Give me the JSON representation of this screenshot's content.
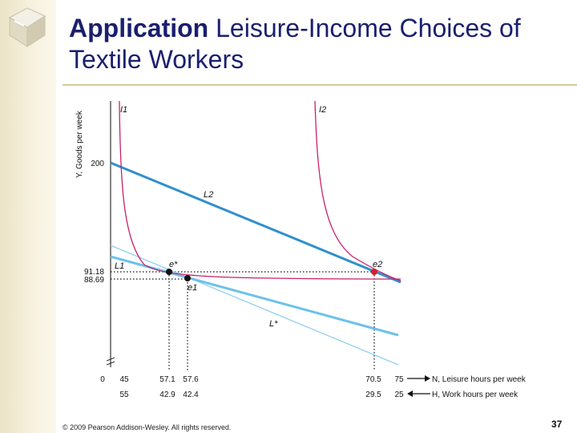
{
  "slide": {
    "title_bold": "Application",
    "title_rest": " Leisure-Income Choices of Textile Workers",
    "footer": "© 2009 Pearson Addison-Wesley. All rights reserved.",
    "page_number": "37",
    "accent_color": "#1a1f6e",
    "rule_color": "#d6cc9a"
  },
  "chart_data": {
    "type": "line",
    "ylabel": "Y, Goods per week",
    "xlabel_top": "N, Leisure hours per week",
    "xlabel_bottom": "H, Work hours per week",
    "y_ticks": [
      "200",
      "91.18",
      "88.69"
    ],
    "x_ticks_leisure": [
      "0",
      "45",
      "57.1",
      "57.6",
      "70.5",
      "75"
    ],
    "x_ticks_work": [
      "55",
      "42.9",
      "42.4",
      "29.5",
      "25"
    ],
    "series": [
      {
        "name": "L2",
        "color": "#2f8fce",
        "values": [
          [
            45,
            200
          ],
          [
            75,
            88.69
          ]
        ]
      },
      {
        "name": "L1",
        "color": "#6ec1ea",
        "values": [
          [
            45,
            110
          ],
          [
            75,
            40
          ]
        ]
      },
      {
        "name": "L*",
        "color": "#8fd0f0",
        "values": [
          [
            45,
            117
          ],
          [
            75,
            17
          ]
        ]
      }
    ],
    "curves": [
      {
        "name": "I1",
        "color": "#c8216a"
      },
      {
        "name": "I2",
        "color": "#c8216a"
      }
    ],
    "points": [
      {
        "name": "e*",
        "x": 57.1,
        "y": 91.18,
        "color": "#111111"
      },
      {
        "name": "e1",
        "x": 57.6,
        "y": 88.69,
        "color": "#111111"
      },
      {
        "name": "e2",
        "x": 70.5,
        "y": 91.18,
        "color": "#d2202f"
      }
    ],
    "point_labels": [
      "e*",
      "e1",
      "e2"
    ],
    "line_labels": [
      "L1",
      "L2",
      "L*"
    ],
    "curve_labels": [
      "I1",
      "I2"
    ]
  }
}
